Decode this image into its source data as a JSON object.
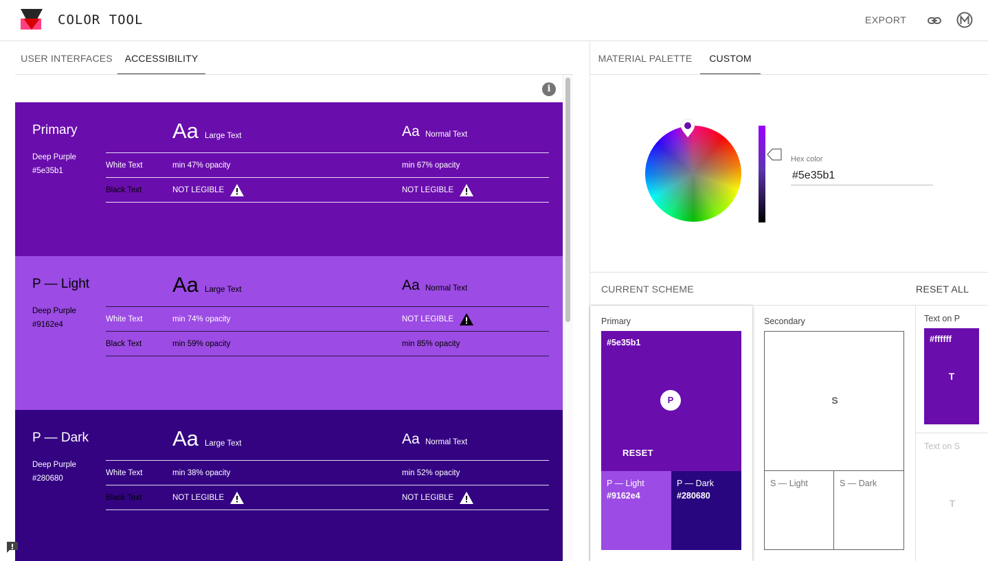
{
  "header": {
    "app_title": "COLOR TOOL",
    "export_label": "EXPORT",
    "icons": [
      "logo-icon",
      "link-icon",
      "material-m-icon"
    ]
  },
  "left_tabs": [
    {
      "label": "USER INTERFACES",
      "active": false
    },
    {
      "label": "ACCESSIBILITY",
      "active": true
    }
  ],
  "info_icon_glyph": "i",
  "swatches": [
    {
      "title": "Primary",
      "name": "Deep Purple",
      "hex": "#5e35b1",
      "bg": "#6a0dad",
      "large_aa": "Aa",
      "large_label": "Large Text",
      "normal_aa": "Aa",
      "normal_label": "Normal Text",
      "white_label": "White Text",
      "white_large": "min 47% opacity",
      "white_normal": "min 67% opacity",
      "black_label": "Black Text",
      "black_large": "NOT LEGIBLE",
      "black_normal": "NOT LEGIBLE"
    },
    {
      "title": "P — Light",
      "name": "Deep Purple",
      "hex": "#9162e4",
      "bg": "#9c4be4",
      "large_aa": "Aa",
      "large_label": "Large Text",
      "normal_aa": "Aa",
      "normal_label": "Normal Text",
      "white_label": "White Text",
      "white_large": "min 74% opacity",
      "white_normal": "NOT LEGIBLE",
      "black_label": "Black Text",
      "black_large": "min 59% opacity",
      "black_normal": "min 85% opacity"
    },
    {
      "title": "P — Dark",
      "name": "Deep Purple",
      "hex": "#280680",
      "bg": "#330382",
      "large_aa": "Aa",
      "large_label": "Large Text",
      "normal_aa": "Aa",
      "normal_label": "Normal Text",
      "white_label": "White Text",
      "white_large": "min 38% opacity",
      "white_normal": "min 52% opacity",
      "black_label": "Black Text",
      "black_large": "NOT LEGIBLE",
      "black_normal": "NOT LEGIBLE"
    }
  ],
  "right_tabs": [
    {
      "label": "MATERIAL PALETTE",
      "active": false
    },
    {
      "label": "CUSTOM",
      "active": true
    }
  ],
  "picker": {
    "hex_label": "Hex color",
    "hex_value": "#5e35b1"
  },
  "scheme": {
    "title": "CURRENT SCHEME",
    "reset_all": "RESET ALL",
    "primary": {
      "title": "Primary",
      "hex": "#5e35b1",
      "badge": "P",
      "reset": "RESET",
      "light_label": "P — Light",
      "light_hex": "#9162e4",
      "dark_label": "P — Dark",
      "dark_hex": "#280680"
    },
    "secondary": {
      "title": "Secondary",
      "letter": "S",
      "light_label": "S — Light",
      "dark_label": "S — Dark"
    },
    "text_on_p": {
      "title": "Text on P",
      "hex": "#ffffff",
      "letter": "T"
    },
    "text_on_s": {
      "title": "Text on S",
      "letter": "T"
    }
  },
  "colors": {
    "primary": "#6a0dad",
    "p_light": "#9c4be4",
    "p_dark": "#280680"
  }
}
